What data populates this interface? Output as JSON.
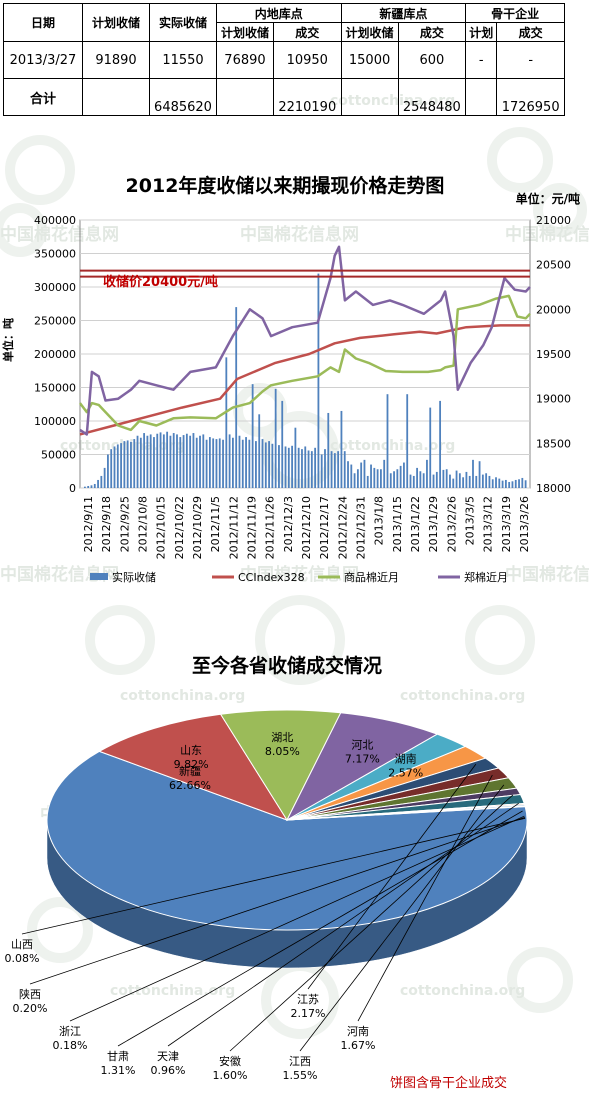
{
  "table": {
    "headers": {
      "date": "日期",
      "plan": "计划收储",
      "actual": "实际收储",
      "inland": "内地库点",
      "xinjiang": "新疆库点",
      "backbone": "骨干企业",
      "sub_plan": "计划收储",
      "sub_deal": "成交",
      "sub_plan_short": "计划"
    },
    "row1": [
      "2013/3/27",
      "91890",
      "11550",
      "76890",
      "10950",
      "15000",
      "600",
      "-",
      "-"
    ],
    "total": {
      "label": "合计",
      "actual": "6485620",
      "inland_deal": "2210190",
      "xinjiang_deal": "2548480",
      "backbone_deal": "1726950"
    }
  },
  "watermarks": [
    "中国棉花信息网",
    "cottonchina.org"
  ],
  "chart_data": [
    {
      "type": "bar+line",
      "title": "2012年度收储以来期撮现价格走势图",
      "unit_right": "单位：元/吨",
      "ylabel_left": "单位：吨",
      "ylim_left": [
        0,
        400000
      ],
      "ylim_right": [
        18000,
        21000
      ],
      "yticks_left": [
        "0",
        "50000",
        "100000",
        "150000",
        "200000",
        "250000",
        "300000",
        "350000",
        "400000"
      ],
      "yticks_right": [
        "18000",
        "18500",
        "19000",
        "19500",
        "20000",
        "20500",
        "21000"
      ],
      "x_start": "2012-09-11",
      "x_end": "2013-03-27",
      "xtick_labels": [
        "2012/9/11",
        "2012/9/18",
        "2012/9/25",
        "2012/10/8",
        "2012/10/15",
        "2012/10/22",
        "2012/10/29",
        "2012/11/5",
        "2012/11/12",
        "2012/11/19",
        "2012/11/26",
        "2012/12/3",
        "2012/12/10",
        "2012/12/17",
        "2012/12/24",
        "2012/12/31",
        "2013/1/8",
        "2013/1/15",
        "2013/1/22",
        "2013/1/29",
        "2013/2/26",
        "2013/3/5",
        "2013/3/12",
        "2013/3/19",
        "2013/3/26"
      ],
      "annotation": {
        "text": "收储价20400元/吨",
        "value": 20400
      },
      "legend": [
        "实际收储",
        "CCIndex328",
        "商品棉近月",
        "郑棉近月"
      ],
      "colors": {
        "bars": "#4f81bd",
        "ccindex": "#c0504d",
        "commodity": "#9bbb59",
        "zhengmian": "#8064a2",
        "annotation": "#a52a2a"
      },
      "bar_values": [
        2000,
        3000,
        4000,
        6000,
        12000,
        18000,
        30000,
        50000,
        58000,
        62000,
        65000,
        67000,
        70000,
        71000,
        69000,
        73000,
        78000,
        75000,
        82000,
        78000,
        80000,
        76000,
        81000,
        83000,
        80000,
        84000,
        78000,
        82000,
        80000,
        76000,
        79000,
        81000,
        78000,
        82000,
        75000,
        78000,
        80000,
        72000,
        76000,
        74000,
        73000,
        74000,
        72000,
        195000,
        80000,
        75000,
        270000,
        78000,
        72000,
        76000,
        72000,
        155000,
        70000,
        110000,
        73000,
        68000,
        70000,
        66000,
        148000,
        64000,
        130000,
        62000,
        60000,
        63000,
        90000,
        60000,
        58000,
        62000,
        56000,
        55000,
        60000,
        320000,
        50000,
        58000,
        112000,
        55000,
        52000,
        55000,
        115000,
        55000,
        40000,
        35000,
        22000,
        28000,
        38000,
        42000,
        18000,
        35000,
        30000,
        28000,
        28000,
        42000,
        140000,
        22000,
        25000,
        28000,
        33000,
        38000,
        140000,
        20000,
        18000,
        30000,
        25000,
        22000,
        42000,
        120000,
        20000,
        24000,
        130000,
        27000,
        28000,
        20000,
        14000,
        26000,
        22000,
        16000,
        24000,
        18000,
        42000,
        18000,
        40000,
        20000,
        22000,
        18000,
        13000,
        16000,
        14000,
        11000,
        12000,
        9000,
        10000,
        12000,
        13000,
        15000,
        11550
      ],
      "ccindex": [
        [
          0,
          18600
        ],
        [
          40,
          18700
        ],
        [
          120,
          18900
        ],
        [
          165,
          19000
        ],
        [
          185,
          19220
        ],
        [
          230,
          19400
        ],
        [
          270,
          19500
        ],
        [
          300,
          19620
        ],
        [
          330,
          19680
        ],
        [
          370,
          19720
        ],
        [
          400,
          19750
        ],
        [
          420,
          19730
        ],
        [
          455,
          19800
        ],
        [
          495,
          19820
        ],
        [
          530,
          19820
        ]
      ],
      "commodity": [
        [
          0,
          18950
        ],
        [
          8,
          18850
        ],
        [
          14,
          18950
        ],
        [
          22,
          18930
        ],
        [
          30,
          18850
        ],
        [
          45,
          18700
        ],
        [
          60,
          18650
        ],
        [
          70,
          18750
        ],
        [
          90,
          18700
        ],
        [
          110,
          18780
        ],
        [
          130,
          18790
        ],
        [
          160,
          18780
        ],
        [
          180,
          18900
        ],
        [
          200,
          18950
        ],
        [
          215,
          19080
        ],
        [
          225,
          19150
        ],
        [
          250,
          19200
        ],
        [
          280,
          19250
        ],
        [
          295,
          19350
        ],
        [
          305,
          19300
        ],
        [
          312,
          19550
        ],
        [
          325,
          19450
        ],
        [
          340,
          19400
        ],
        [
          360,
          19310
        ],
        [
          380,
          19300
        ],
        [
          410,
          19300
        ],
        [
          425,
          19320
        ],
        [
          430,
          19350
        ],
        [
          440,
          19370
        ],
        [
          445,
          20000
        ],
        [
          470,
          20050
        ],
        [
          490,
          20120
        ],
        [
          505,
          20150
        ],
        [
          515,
          19920
        ],
        [
          525,
          19900
        ],
        [
          530,
          19950
        ]
      ],
      "zhengmian": [
        [
          0,
          18650
        ],
        [
          8,
          18600
        ],
        [
          14,
          19300
        ],
        [
          22,
          19250
        ],
        [
          30,
          18980
        ],
        [
          45,
          19000
        ],
        [
          60,
          19100
        ],
        [
          70,
          19200
        ],
        [
          90,
          19150
        ],
        [
          110,
          19100
        ],
        [
          130,
          19300
        ],
        [
          160,
          19350
        ],
        [
          180,
          19700
        ],
        [
          200,
          20000
        ],
        [
          215,
          19900
        ],
        [
          225,
          19700
        ],
        [
          250,
          19800
        ],
        [
          280,
          19850
        ],
        [
          295,
          20350
        ],
        [
          300,
          20600
        ],
        [
          305,
          20700
        ],
        [
          312,
          20100
        ],
        [
          325,
          20200
        ],
        [
          345,
          20050
        ],
        [
          365,
          20100
        ],
        [
          380,
          20050
        ],
        [
          405,
          19950
        ],
        [
          425,
          20100
        ],
        [
          430,
          20200
        ],
        [
          440,
          19700
        ],
        [
          445,
          19100
        ],
        [
          460,
          19400
        ],
        [
          475,
          19600
        ],
        [
          485,
          19800
        ],
        [
          500,
          20350
        ],
        [
          512,
          20220
        ],
        [
          525,
          20200
        ],
        [
          530,
          20250
        ]
      ]
    },
    {
      "type": "pie",
      "title": "至今各省收储成交情况",
      "note": "饼图含骨干企业成交",
      "slices": [
        {
          "name": "新疆",
          "value": 62.66,
          "label": "62.66%",
          "color": "#4f81bd"
        },
        {
          "name": "山东",
          "value": 9.82,
          "label": "9.82%",
          "color": "#c0504d"
        },
        {
          "name": "湖北",
          "value": 8.05,
          "label": "8.05%",
          "color": "#9bbb59"
        },
        {
          "name": "河北",
          "value": 7.17,
          "label": "7.17%",
          "color": "#8064a2"
        },
        {
          "name": "湖南",
          "value": 2.57,
          "label": "2.57%",
          "color": "#4bacc6"
        },
        {
          "name": "江苏",
          "value": 2.17,
          "label": "2.17%",
          "color": "#f79646"
        },
        {
          "name": "河南",
          "value": 1.67,
          "label": "1.67%",
          "color": "#2c4d75"
        },
        {
          "name": "江西",
          "value": 1.55,
          "label": "1.55%",
          "color": "#772c2a"
        },
        {
          "name": "安徽",
          "value": 1.6,
          "label": "1.60%",
          "color": "#5f7530"
        },
        {
          "name": "天津",
          "value": 0.96,
          "label": "0.96%",
          "color": "#4d3b62"
        },
        {
          "name": "甘肃",
          "value": 1.31,
          "label": "1.31%",
          "color": "#276a7c"
        },
        {
          "name": "浙江",
          "value": 0.18,
          "label": "0.18%",
          "color": "#b65708"
        },
        {
          "name": "陕西",
          "value": 0.2,
          "label": "0.20%",
          "color": "#729aca"
        },
        {
          "name": "山西",
          "value": 0.08,
          "label": "0.08%",
          "color": "#cd7371"
        }
      ]
    }
  ]
}
